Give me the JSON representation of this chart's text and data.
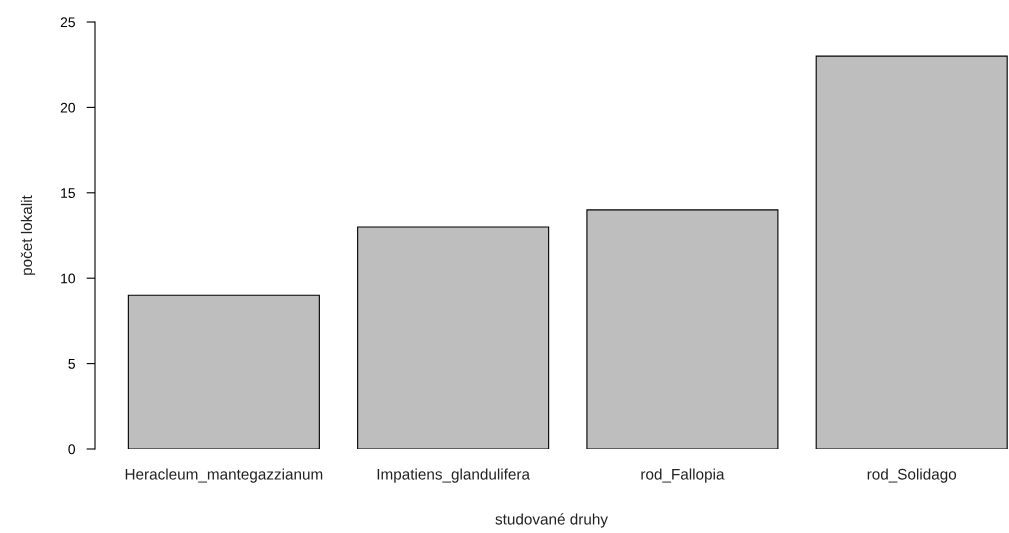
{
  "chart_data": {
    "type": "bar",
    "xlabel": "studované druhy",
    "ylabel": "počet lokalit",
    "categories": [
      "Heracleum_mantegazzianum",
      "Impatiens_glandulifera",
      "rod_Fallopia",
      "rod_Solidago"
    ],
    "values": [
      9,
      13,
      14,
      23
    ],
    "color": "#bebebe",
    "ylim": [
      0,
      25
    ],
    "yticks": [
      0,
      5,
      10,
      15,
      20,
      25
    ],
    "grid": false
  }
}
